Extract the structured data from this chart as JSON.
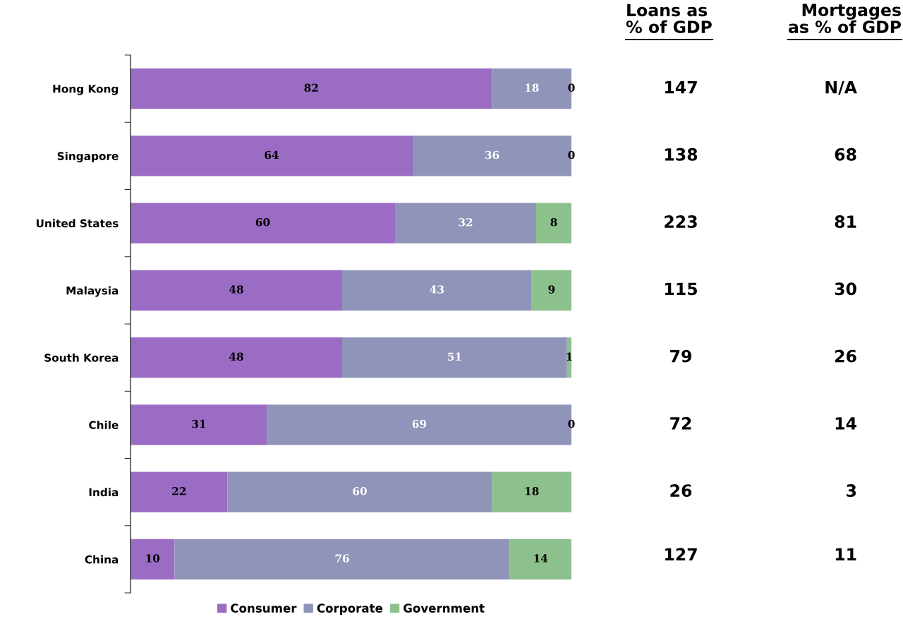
{
  "chart_data": {
    "type": "bar",
    "orientation": "horizontal",
    "stacked": true,
    "data_labels": true,
    "legend": "bottom",
    "grid": false,
    "categories": [
      "Hong Kong",
      "Singapore",
      "United States",
      "Malaysia",
      "South Korea",
      "Chile",
      "India",
      "China"
    ],
    "series": [
      {
        "name": "Consumer",
        "color": "#9a6cc4",
        "values": [
          82,
          64,
          60,
          48,
          48,
          31,
          22,
          10
        ]
      },
      {
        "name": "Corporate",
        "color": "#9094b8",
        "values": [
          18,
          36,
          32,
          43,
          51,
          69,
          60,
          76
        ]
      },
      {
        "name": "Government",
        "color": "#8cc08c",
        "values": [
          0,
          0,
          8,
          9,
          1,
          0,
          18,
          14
        ]
      }
    ],
    "annotations": [
      "Loans as\n% of GDP",
      "Mortgages\nas % of GDP",
      "147",
      "N/A",
      "138",
      "68",
      "223",
      "81",
      "115",
      "30",
      "79",
      "26",
      "72",
      "14",
      "26",
      "3",
      "127",
      "11"
    ]
  }
}
